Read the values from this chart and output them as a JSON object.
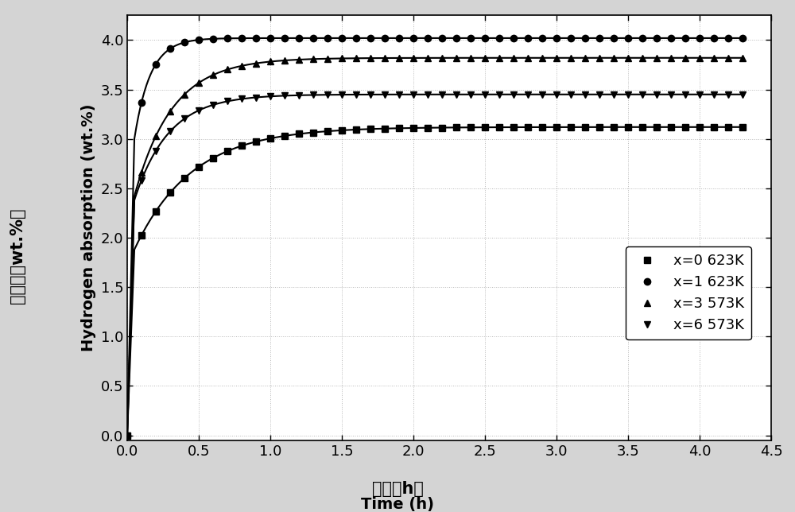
{
  "xlabel_cn": "时间（h）",
  "xlabel_en": "Time (h)",
  "ylabel_cn": "吸氢量（wt.%）",
  "ylabel_en": "Hydrogen absorption (wt.%)",
  "xlim": [
    0.0,
    4.5
  ],
  "ylim": [
    -0.05,
    4.25
  ],
  "xticks": [
    0.0,
    0.5,
    1.0,
    1.5,
    2.0,
    2.5,
    3.0,
    3.5,
    4.0,
    4.5
  ],
  "yticks": [
    0.0,
    0.5,
    1.0,
    1.5,
    2.0,
    2.5,
    3.0,
    3.5,
    4.0
  ],
  "series": [
    {
      "label": "x=0 623K",
      "marker": "s",
      "sat": 3.12,
      "rate": 2.5,
      "jump_val": 1.88,
      "jump_t": 0.05
    },
    {
      "label": "x=1 623K",
      "marker": "o",
      "sat": 4.02,
      "rate": 9.0,
      "jump_val": 3.0,
      "jump_t": 0.05
    },
    {
      "label": "x=3 573K",
      "marker": "^",
      "sat": 3.82,
      "rate": 3.8,
      "jump_val": 2.42,
      "jump_t": 0.05
    },
    {
      "label": "x=6 573K",
      "marker": "v",
      "sat": 3.45,
      "rate": 4.2,
      "jump_val": 2.38,
      "jump_t": 0.05
    }
  ],
  "background_color": "#d4d4d4",
  "plot_bg_color": "#ffffff",
  "legend_fontsize": 13,
  "axis_fontsize": 14,
  "tick_fontsize": 13,
  "linewidth": 1.5,
  "markersize": 6
}
